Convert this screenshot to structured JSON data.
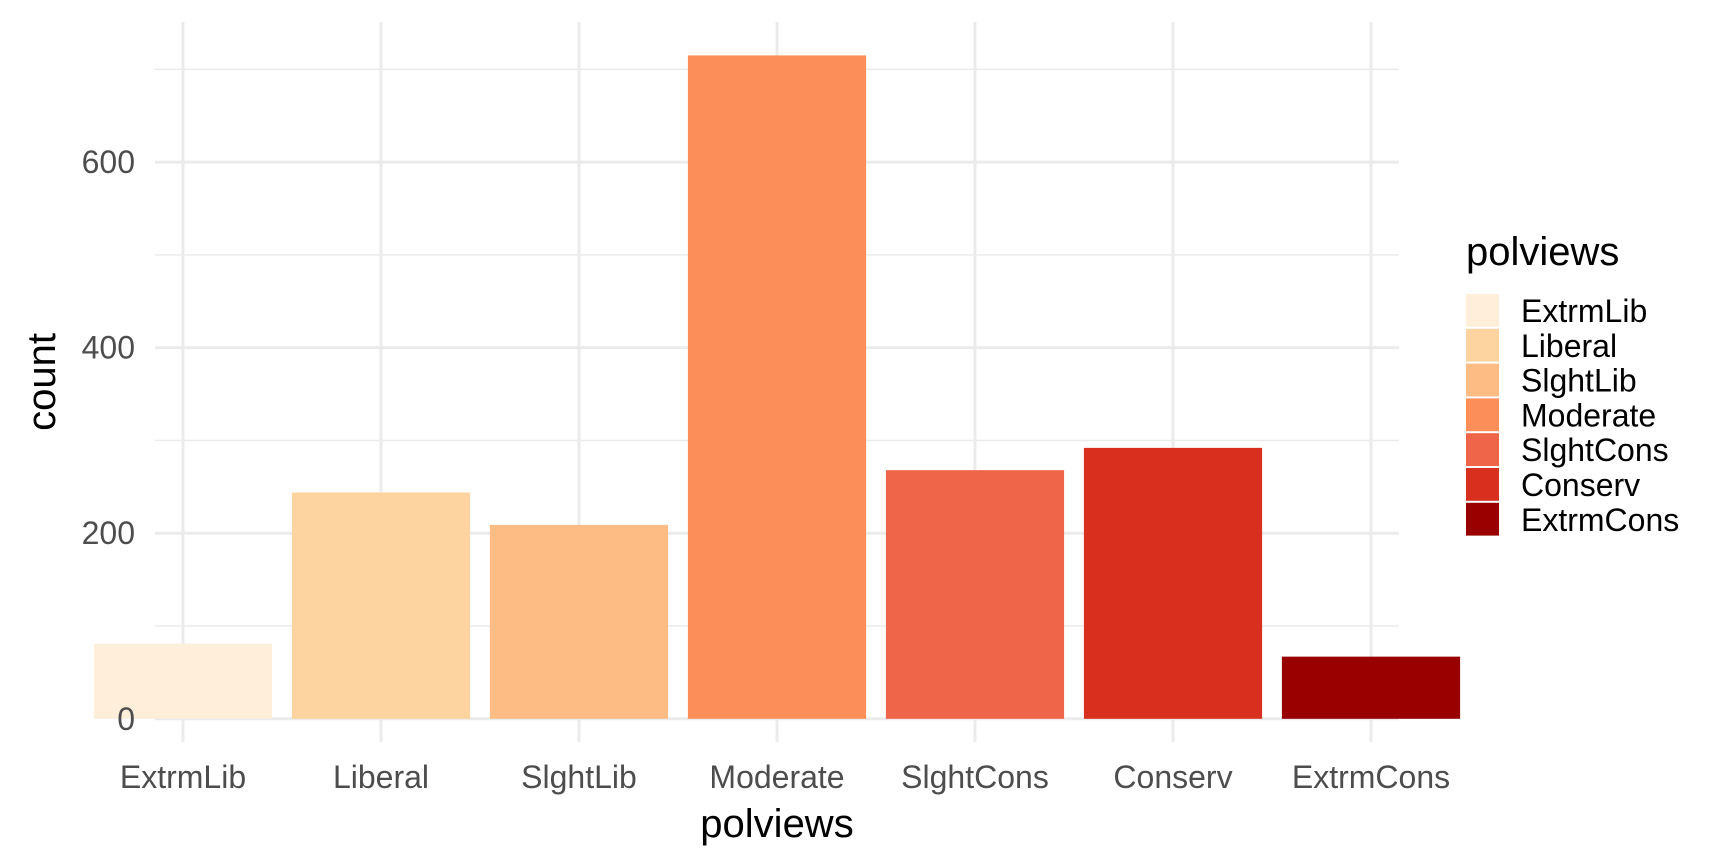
{
  "chart_data": {
    "type": "bar",
    "categories": [
      "ExtrmLib",
      "Liberal",
      "SlghtLib",
      "Moderate",
      "SlghtCons",
      "Conserv",
      "ExtrmCons"
    ],
    "values": [
      81,
      244,
      209,
      715,
      268,
      292,
      67
    ],
    "colors": [
      "#FEEEDA",
      "#FDD49F",
      "#FCBC84",
      "#FC8E5A",
      "#EF6549",
      "#D7301F",
      "#990000"
    ],
    "xlabel": "polviews",
    "ylabel": "count",
    "ylim": [
      -25,
      751
    ],
    "yticks": [
      0,
      200,
      400,
      600
    ],
    "grid": true,
    "legend": {
      "title": "polviews",
      "position": "right",
      "entries": [
        "ExtrmLib",
        "Liberal",
        "SlghtLib",
        "Moderate",
        "SlghtCons",
        "Conserv",
        "ExtrmCons"
      ]
    }
  }
}
